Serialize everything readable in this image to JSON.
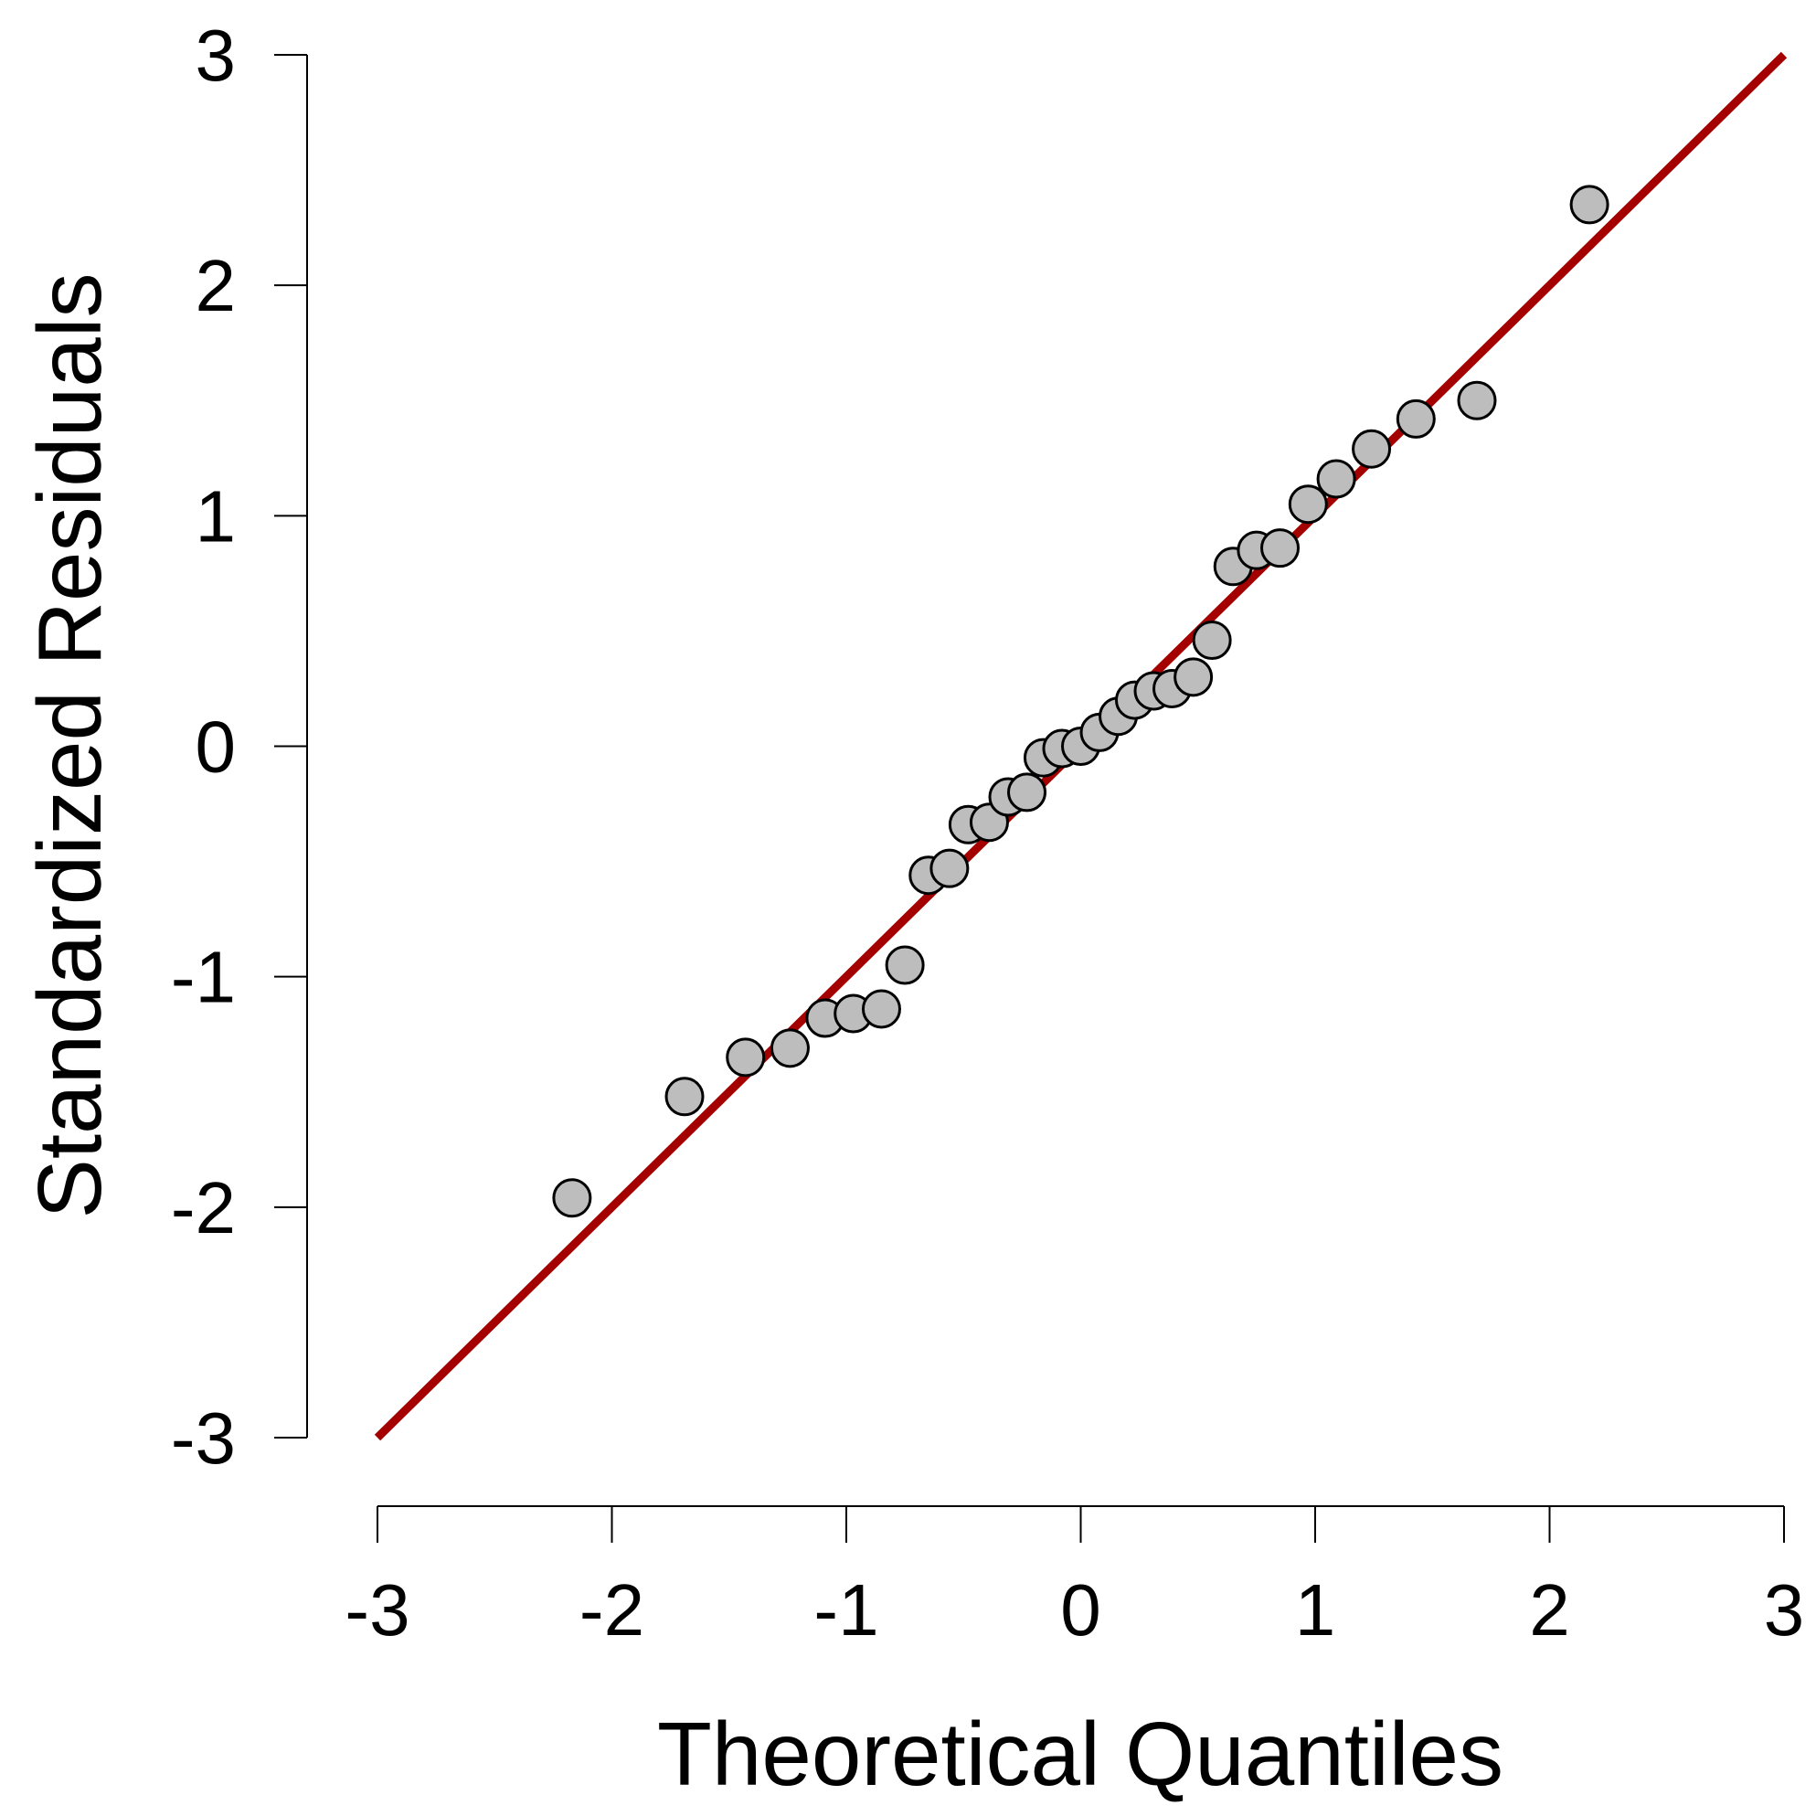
{
  "chart_data": {
    "type": "scatter",
    "title": "",
    "xlabel": "Theoretical Quantiles",
    "ylabel": "Standardized Residuals",
    "xlim": [
      -3,
      3
    ],
    "ylim": [
      -3,
      3
    ],
    "xticks": [
      "-3",
      "-2",
      "-1",
      "0",
      "1",
      "2",
      "3"
    ],
    "yticks": [
      "-3",
      "-2",
      "-1",
      "0",
      "1",
      "2",
      "3"
    ],
    "grid": false,
    "legend": "none",
    "reference_line": {
      "x": [
        -3,
        3
      ],
      "y": [
        -3,
        3
      ],
      "color": "#a50000"
    },
    "point_fill": "#bdbdbd",
    "point_stroke": "#000000",
    "series": [
      {
        "x": [
          -2.17,
          -1.69,
          -1.43,
          -1.24,
          -1.09,
          -0.97,
          -0.85,
          -0.75,
          -0.65,
          -0.56,
          -0.48,
          -0.39,
          -0.31,
          -0.23,
          -0.16,
          -0.08,
          0.0,
          0.08,
          0.16,
          0.23,
          0.31,
          0.39,
          0.48,
          0.56,
          0.65,
          0.75,
          0.85,
          0.97,
          1.09,
          1.24,
          1.43,
          1.69,
          2.17
        ],
        "y": [
          -1.96,
          -1.52,
          -1.35,
          -1.31,
          -1.18,
          -1.16,
          -1.14,
          -0.95,
          -0.56,
          -0.53,
          -0.34,
          -0.33,
          -0.22,
          -0.2,
          -0.05,
          -0.01,
          0.0,
          0.06,
          0.13,
          0.2,
          0.24,
          0.25,
          0.3,
          0.46,
          0.78,
          0.85,
          0.86,
          1.05,
          1.16,
          1.29,
          1.42,
          1.5,
          2.35
        ]
      }
    ]
  }
}
